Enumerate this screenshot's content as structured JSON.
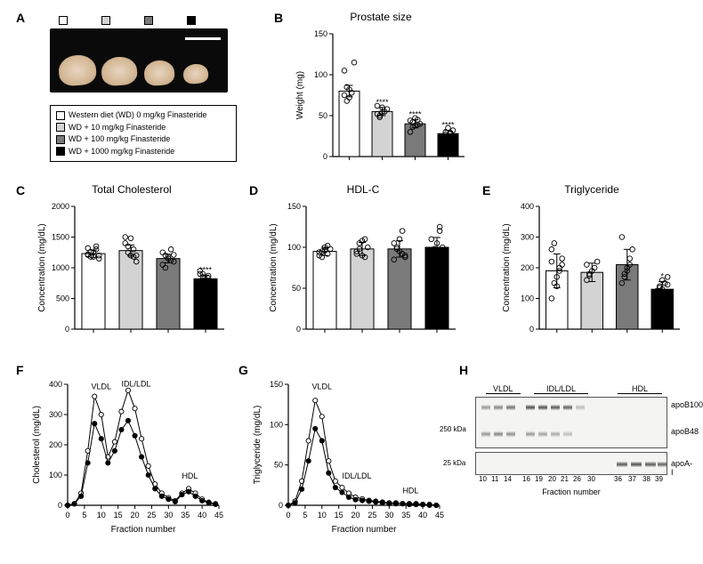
{
  "legend": {
    "items": [
      {
        "label": "Western diet (WD) 0 mg/kg Finasteride",
        "color": "#ffffff"
      },
      {
        "label": "WD + 10 mg/kg Finasteride",
        "color": "#d3d3d3"
      },
      {
        "label": "WD + 100 mg/kg Finasteride",
        "color": "#7a7a7a"
      },
      {
        "label": "WD + 1000 mg/kg Finasteride",
        "color": "#000000"
      }
    ]
  },
  "panels": {
    "A": {
      "label": "A"
    },
    "B": {
      "label": "B",
      "title": "Prostate size",
      "ylabel": "Weight (mg)",
      "ylim": [
        0,
        150
      ],
      "ytick_step": 50,
      "bar_colors": [
        "#ffffff",
        "#d3d3d3",
        "#7a7a7a",
        "#000000"
      ],
      "means": [
        80,
        55,
        40,
        28
      ],
      "err": [
        7,
        5,
        5,
        4
      ],
      "sig": [
        "",
        "****",
        "****",
        "****"
      ],
      "points": [
        [
          75,
          68,
          82,
          78,
          115,
          105,
          85,
          72
        ],
        [
          52,
          48,
          60,
          55,
          58,
          62,
          50,
          54
        ],
        [
          30,
          42,
          38,
          45,
          40,
          44,
          36,
          47,
          39
        ],
        [
          22,
          30,
          25,
          28,
          32,
          20,
          27,
          35,
          29
        ]
      ]
    },
    "C": {
      "label": "C",
      "title": "Total Cholesterol",
      "ylabel": "Concentration (mg/dL)",
      "ylim": [
        0,
        2000
      ],
      "ytick_step": 500,
      "bar_colors": [
        "#ffffff",
        "#d3d3d3",
        "#7a7a7a",
        "#000000"
      ],
      "means": [
        1230,
        1280,
        1150,
        820
      ],
      "err": [
        60,
        90,
        70,
        60
      ],
      "sig": [
        "",
        "",
        "",
        "****"
      ],
      "points": [
        [
          1320,
          1180,
          1250,
          1300,
          1200,
          1220,
          1260,
          1180,
          1350,
          1150,
          1210
        ],
        [
          1500,
          1350,
          1200,
          1300,
          1100,
          1400,
          1250,
          1480,
          1180,
          1200
        ],
        [
          1050,
          1200,
          1150,
          1300,
          1100,
          1250,
          1000,
          1180,
          1120,
          1210
        ],
        [
          900,
          850,
          780,
          830,
          700,
          950,
          800,
          650,
          870,
          760,
          720,
          900
        ]
      ]
    },
    "D": {
      "label": "D",
      "title": "HDL-C",
      "ylabel": "Concentration (mg/dL)",
      "ylim": [
        0,
        150
      ],
      "ytick_step": 50,
      "bar_colors": [
        "#ffffff",
        "#d3d3d3",
        "#7a7a7a",
        "#000000"
      ],
      "means": [
        95,
        98,
        98,
        100
      ],
      "err": [
        5,
        8,
        10,
        12
      ],
      "sig": [
        "",
        "",
        "",
        ""
      ],
      "points": [
        [
          90,
          95,
          100,
          92,
          98,
          94,
          88,
          96,
          102
        ],
        [
          95,
          105,
          90,
          110,
          100,
          92,
          98,
          108,
          88
        ],
        [
          85,
          100,
          95,
          120,
          90,
          105,
          98,
          110,
          92,
          88
        ],
        [
          80,
          95,
          105,
          125,
          90,
          110,
          98,
          85,
          120,
          100
        ]
      ]
    },
    "E": {
      "label": "E",
      "title": "Triglyceride",
      "ylabel": "Concentration (mg/dL)",
      "ylim": [
        0,
        400
      ],
      "ytick_step": 100,
      "bar_colors": [
        "#ffffff",
        "#d3d3d3",
        "#7a7a7a",
        "#000000"
      ],
      "means": [
        190,
        185,
        210,
        130
      ],
      "err": [
        55,
        30,
        50,
        25
      ],
      "sig": [
        "",
        "",
        "",
        "*"
      ],
      "points": [
        [
          100,
          150,
          170,
          200,
          230,
          260,
          280,
          140,
          190,
          210,
          220
        ],
        [
          160,
          180,
          190,
          200,
          220,
          210,
          175
        ],
        [
          150,
          180,
          200,
          230,
          260,
          300,
          170,
          190,
          210
        ],
        [
          90,
          110,
          130,
          150,
          170,
          120,
          140,
          160,
          105,
          145,
          125,
          135
        ]
      ]
    },
    "F": {
      "label": "F",
      "ylabel": "Cholesterol (mg/dL)",
      "xlabel": "Fraction number",
      "xlim": [
        0,
        45
      ],
      "xtick_step": 5,
      "ylim": [
        0,
        400
      ],
      "ytick_step": 100,
      "annotations": [
        "VLDL",
        "IDL/LDL",
        "HDL"
      ],
      "series": [
        {
          "color": "#ffffff",
          "stroke": "#000000",
          "y": [
            0,
            5,
            40,
            180,
            360,
            300,
            160,
            210,
            310,
            380,
            320,
            220,
            130,
            70,
            40,
            25,
            15,
            40,
            55,
            40,
            20,
            10,
            5
          ]
        },
        {
          "color": "#000000",
          "stroke": "#000000",
          "y": [
            0,
            5,
            30,
            140,
            270,
            220,
            140,
            180,
            250,
            280,
            230,
            160,
            100,
            55,
            30,
            20,
            12,
            35,
            45,
            30,
            15,
            8,
            3
          ]
        }
      ],
      "x": [
        0,
        2,
        4,
        6,
        8,
        10,
        12,
        14,
        16,
        18,
        20,
        22,
        24,
        26,
        28,
        30,
        32,
        34,
        36,
        38,
        40,
        42,
        44
      ]
    },
    "G": {
      "label": "G",
      "ylabel": "Triglyceride (mg/dL)",
      "xlabel": "Fraction number",
      "xlim": [
        0,
        45
      ],
      "xtick_step": 5,
      "ylim": [
        0,
        150
      ],
      "ytick_step": 50,
      "annotations": [
        "VLDL",
        "IDL/LDL",
        "HDL"
      ],
      "series": [
        {
          "color": "#ffffff",
          "stroke": "#000000",
          "y": [
            0,
            5,
            30,
            80,
            130,
            110,
            55,
            30,
            22,
            15,
            10,
            8,
            6,
            5,
            4,
            3,
            3,
            2,
            2,
            2,
            1,
            1,
            0
          ]
        },
        {
          "color": "#000000",
          "stroke": "#000000",
          "y": [
            0,
            3,
            20,
            55,
            95,
            80,
            40,
            22,
            16,
            10,
            7,
            6,
            5,
            4,
            3,
            2,
            2,
            2,
            1,
            1,
            1,
            0,
            0
          ]
        }
      ],
      "x": [
        0,
        2,
        4,
        6,
        8,
        10,
        12,
        14,
        16,
        18,
        20,
        22,
        24,
        26,
        28,
        30,
        32,
        34,
        36,
        38,
        40,
        42,
        44
      ]
    },
    "H": {
      "label": "H",
      "region_labels": [
        "VLDL",
        "IDL/LDL",
        "HDL"
      ],
      "row_labels": [
        "apoB100",
        "apoB48",
        "apoA-I"
      ],
      "mw_labels": [
        "250 kDa",
        "25 kDa"
      ],
      "fraction_numbers": [
        "10",
        "11",
        "14",
        "16",
        "19",
        "20",
        "21",
        "26",
        "30",
        "36",
        "37",
        "38",
        "39"
      ],
      "xlabel": "Fraction number"
    }
  }
}
